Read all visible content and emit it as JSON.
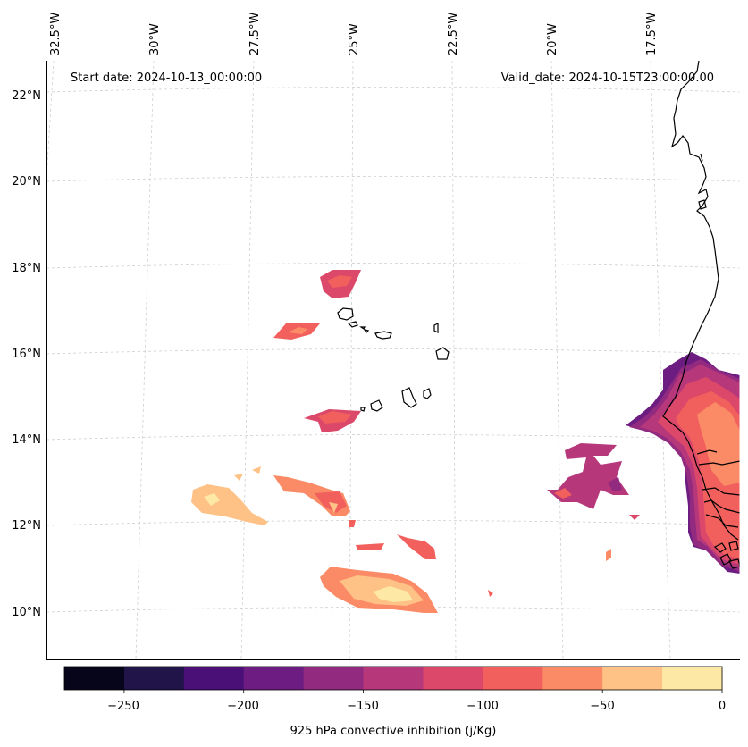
{
  "header": {
    "start_date": "Start date: 2024-10-13_00:00:00",
    "valid_date": "Valid_date: 2024-10-15T23:00:00.00"
  },
  "longitude_labels": [
    "32.5°W",
    "30°W",
    "27.5°W",
    "25°W",
    "22.5°W",
    "20°W",
    "17.5°W"
  ],
  "latitude_labels": [
    "22°N",
    "20°N",
    "18°N",
    "16°N",
    "14°N",
    "12°N",
    "10°N"
  ],
  "colorbar": {
    "label": "925 hPa convective inhibition (j/Kg)",
    "ticks": [
      "−250",
      "−200",
      "−150",
      "−100",
      "−50",
      "0"
    ],
    "colors": [
      "#06051a",
      "#211449",
      "#4a1078",
      "#6d1d81",
      "#922b80",
      "#b7377b",
      "#dc4869",
      "#f1605d",
      "#fb8b66",
      "#fec287",
      "#fde9a5"
    ]
  },
  "chart_data": {
    "type": "filled-contour map",
    "title": "925 hPa convective inhibition (j/Kg)",
    "levels": [
      -275,
      -250,
      -225,
      -200,
      -175,
      -150,
      -125,
      -100,
      -75,
      -50,
      -25,
      0
    ],
    "lon_range": [
      -33.0,
      -15.5
    ],
    "lat_range": [
      9.0,
      22.8
    ],
    "regions": [
      "Cape Verde Islands",
      "West African coast (Senegal, Gambia, Guinea-Bissau, Mauritania)"
    ]
  }
}
